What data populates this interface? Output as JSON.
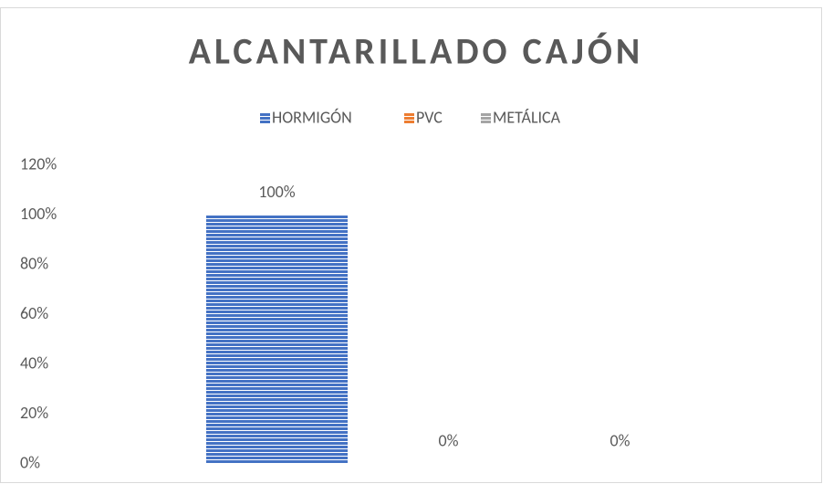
{
  "chart_data": {
    "type": "bar",
    "title": "ALCANTARILLADO CAJÓN",
    "categories": [
      null
    ],
    "series": [
      {
        "name": "HORMIGÓN",
        "color": "#4472c4",
        "values": [
          100
        ],
        "value_labels": [
          "100%"
        ]
      },
      {
        "name": "PVC",
        "color": "#ed7d31",
        "values": [
          0
        ],
        "value_labels": [
          "0%"
        ]
      },
      {
        "name": "METÁLICA",
        "color": "#a5a5a5",
        "values": [
          0
        ],
        "value_labels": [
          "0%"
        ]
      }
    ],
    "ylim": [
      0,
      120
    ],
    "yticks": [
      {
        "value": 0,
        "label": "0%"
      },
      {
        "value": 20,
        "label": "20%"
      },
      {
        "value": 40,
        "label": "40%"
      },
      {
        "value": 60,
        "label": "60%"
      },
      {
        "value": 80,
        "label": "80%"
      },
      {
        "value": 100,
        "label": "100%"
      },
      {
        "value": 120,
        "label": "120%"
      }
    ],
    "grid": false,
    "legend": "top"
  }
}
